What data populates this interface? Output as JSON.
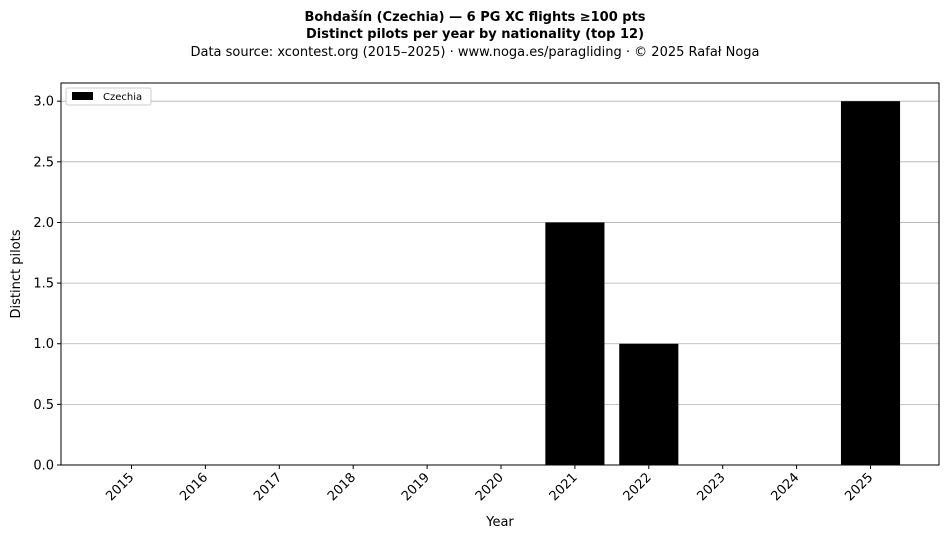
{
  "chart_data": {
    "type": "bar",
    "title": "Bohdašín (Czechia)  —  6 PG XC flights ≥100 pts",
    "title_line2": "Distinct pilots per year by nationality (top 12)",
    "subtitle": "Data source: xcontest.org (2015–2025)  ·  www.noga.es/paragliding  ·  © 2025 Rafał Noga",
    "xlabel": "Year",
    "ylabel": "Distinct pilots",
    "categories": [
      "2015",
      "2016",
      "2017",
      "2018",
      "2019",
      "2020",
      "2021",
      "2022",
      "2023",
      "2024",
      "2025"
    ],
    "series": [
      {
        "name": "Czechia",
        "color": "#000000",
        "values": [
          0,
          0,
          0,
          0,
          0,
          0,
          2,
          1,
          0,
          0,
          3
        ]
      }
    ],
    "ylim": [
      0,
      3.15
    ],
    "yticks": [
      0.0,
      0.5,
      1.0,
      1.5,
      2.0,
      2.5,
      3.0
    ],
    "ytick_labels": [
      "0.0",
      "0.5",
      "1.0",
      "1.5",
      "2.0",
      "2.5",
      "3.0"
    ],
    "grid": "horizontal",
    "legend_position": "top-left"
  }
}
